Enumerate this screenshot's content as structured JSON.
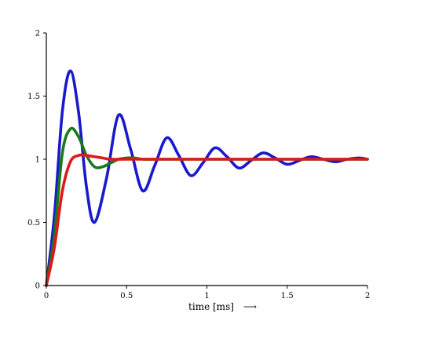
{
  "chart_data": {
    "type": "line",
    "title": "",
    "xlabel": "time [ms]",
    "xlabel_arrow": "⟶",
    "ylabel": "",
    "xlim": [
      0,
      2
    ],
    "ylim": [
      0,
      2
    ],
    "xticks": [
      0,
      0.5,
      1,
      1.5,
      2
    ],
    "yticks": [
      0,
      0.5,
      1,
      1.5,
      2
    ],
    "xtick_labels": [
      "0",
      "0.5",
      "1",
      "1.5",
      "2"
    ],
    "ytick_labels": [
      "0",
      "0.5",
      "1",
      "1.5",
      "2"
    ],
    "grid": false,
    "legend": "none",
    "series": [
      {
        "color": "#1a1acc",
        "x": [
          0,
          0.05,
          0.1,
          0.15,
          0.2,
          0.25,
          0.3,
          0.375,
          0.45,
          0.525,
          0.6,
          0.675,
          0.75,
          0.825,
          0.9,
          0.975,
          1.05,
          1.125,
          1.2,
          1.275,
          1.35,
          1.425,
          1.5,
          1.575,
          1.65,
          1.725,
          1.8,
          1.875,
          1.95,
          2.0
        ],
        "values": [
          0,
          0.55,
          1.38,
          1.7,
          1.38,
          0.78,
          0.5,
          0.85,
          1.35,
          1.08,
          0.75,
          0.95,
          1.17,
          1.03,
          0.87,
          0.97,
          1.09,
          1.02,
          0.93,
          0.99,
          1.05,
          1.01,
          0.96,
          0.99,
          1.02,
          1.0,
          0.98,
          1.0,
          1.01,
          1.0
        ]
      },
      {
        "color": "#1a7a1a",
        "x": [
          0,
          0.05,
          0.1,
          0.15,
          0.2,
          0.25,
          0.3,
          0.35,
          0.4,
          0.45,
          0.5,
          0.55,
          0.6,
          0.7,
          0.8,
          1.0,
          1.5,
          2.0
        ],
        "values": [
          0,
          0.4,
          1.05,
          1.24,
          1.18,
          1.03,
          0.94,
          0.94,
          0.97,
          1.0,
          1.01,
          1.01,
          1.0,
          1.0,
          1.0,
          1.0,
          1.0,
          1.0
        ]
      },
      {
        "color": "#dd1a1a",
        "x": [
          0,
          0.05,
          0.1,
          0.15,
          0.2,
          0.25,
          0.3,
          0.35,
          0.4,
          0.5,
          0.6,
          0.8,
          1.0,
          1.5,
          2.0
        ],
        "values": [
          0,
          0.3,
          0.75,
          0.98,
          1.03,
          1.03,
          1.02,
          1.01,
          1.0,
          1.0,
          1.0,
          1.0,
          1.0,
          1.0,
          1.0
        ]
      }
    ]
  }
}
